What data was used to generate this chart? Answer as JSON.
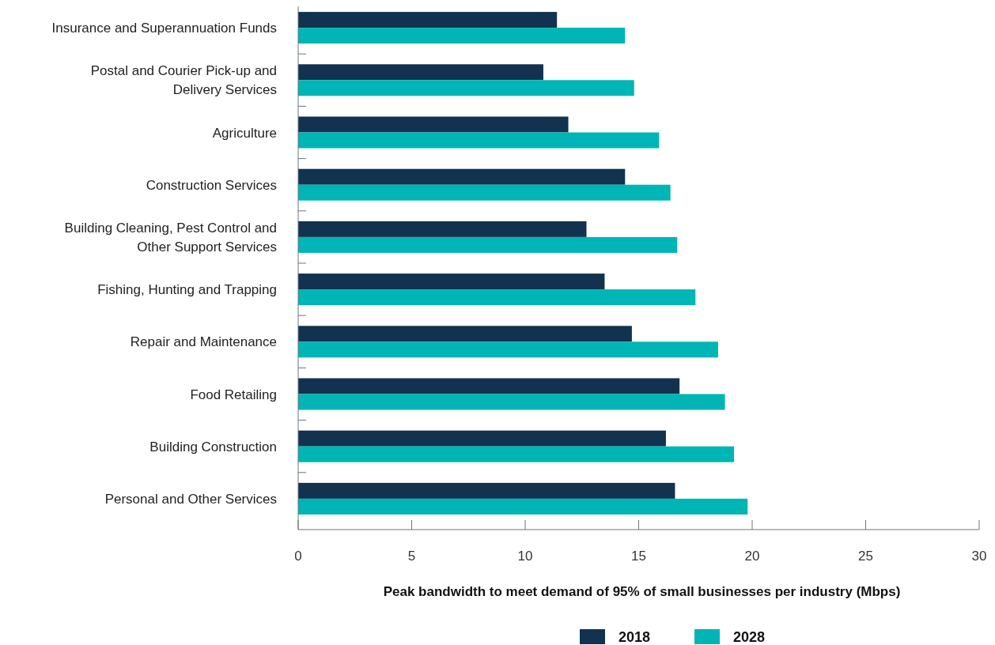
{
  "chart_data": {
    "type": "bar",
    "orientation": "horizontal",
    "xlabel": "Peak bandwidth to meet demand of 95% of small businesses per industry (Mbps)",
    "categories": [
      "Insurance and Superannuation Funds",
      "Postal and Courier Pick-up and Delivery Services",
      "Agriculture",
      "Construction Services",
      "Building Cleaning, Pest Control and Other Support Services",
      "Fishing, Hunting and Trapping",
      "Repair and Maintenance",
      "Food Retailing",
      "Building Construction",
      "Personal and Other Services"
    ],
    "series": [
      {
        "name": "2018",
        "color": "#12324f",
        "values": [
          11.4,
          10.8,
          11.9,
          14.4,
          12.7,
          13.5,
          14.7,
          16.8,
          16.2,
          16.6
        ]
      },
      {
        "name": "2028",
        "color": "#00b5b5",
        "values": [
          14.4,
          14.8,
          15.9,
          16.4,
          16.7,
          17.5,
          18.5,
          18.8,
          19.2,
          19.8
        ]
      }
    ],
    "xlim": [
      0,
      30
    ],
    "xticks": [
      0,
      5,
      10,
      15,
      20,
      25,
      30
    ],
    "grid": false,
    "legend": "bottom"
  }
}
